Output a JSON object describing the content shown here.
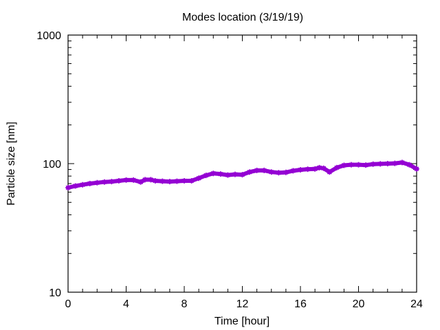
{
  "chart_data": {
    "type": "line",
    "title": "Modes location (3/19/19)",
    "xlabel": "Time [hour]",
    "ylabel": "Particle size [nm]",
    "xlim": [
      0,
      24
    ],
    "ylim": [
      10,
      1000
    ],
    "yscale": "log",
    "grid": false,
    "legend": "none",
    "x_ticks": [
      0,
      4,
      8,
      12,
      16,
      20,
      24
    ],
    "x_tick_labels": [
      "0",
      "4",
      "8",
      "12",
      "16",
      "20",
      "24"
    ],
    "y_ticks": [
      10,
      100,
      1000
    ],
    "y_tick_labels": [
      "10",
      "100",
      "1000"
    ],
    "series": [
      {
        "color": "#9400d3",
        "marker": "star",
        "x": [
          0,
          0.5,
          1,
          1.5,
          2,
          2.5,
          3,
          3.5,
          4,
          4.5,
          5,
          5.3,
          5.7,
          6,
          6.5,
          7,
          7.5,
          8,
          8.5,
          9,
          9.5,
          10,
          10.5,
          11,
          11.5,
          12,
          12.5,
          13,
          13.5,
          14,
          14.5,
          15,
          15.5,
          16,
          16.5,
          17,
          17.3,
          17.6,
          18,
          18.5,
          19,
          19.5,
          20,
          20.5,
          21,
          21.5,
          22,
          22.5,
          23,
          23.5,
          24
        ],
        "y": [
          65,
          67,
          68.5,
          70,
          71,
          72,
          72.5,
          73.5,
          74.5,
          74.5,
          72,
          75,
          75,
          73.5,
          73,
          72.5,
          73,
          73.5,
          73.5,
          77,
          81,
          84,
          83,
          81.5,
          82.5,
          82,
          86,
          88.5,
          88.5,
          86,
          85,
          85.5,
          88,
          89.5,
          90.5,
          91,
          93,
          92,
          86,
          93,
          97,
          98,
          98,
          97.5,
          99,
          99.5,
          100,
          100.5,
          102,
          98,
          91
        ]
      }
    ]
  }
}
